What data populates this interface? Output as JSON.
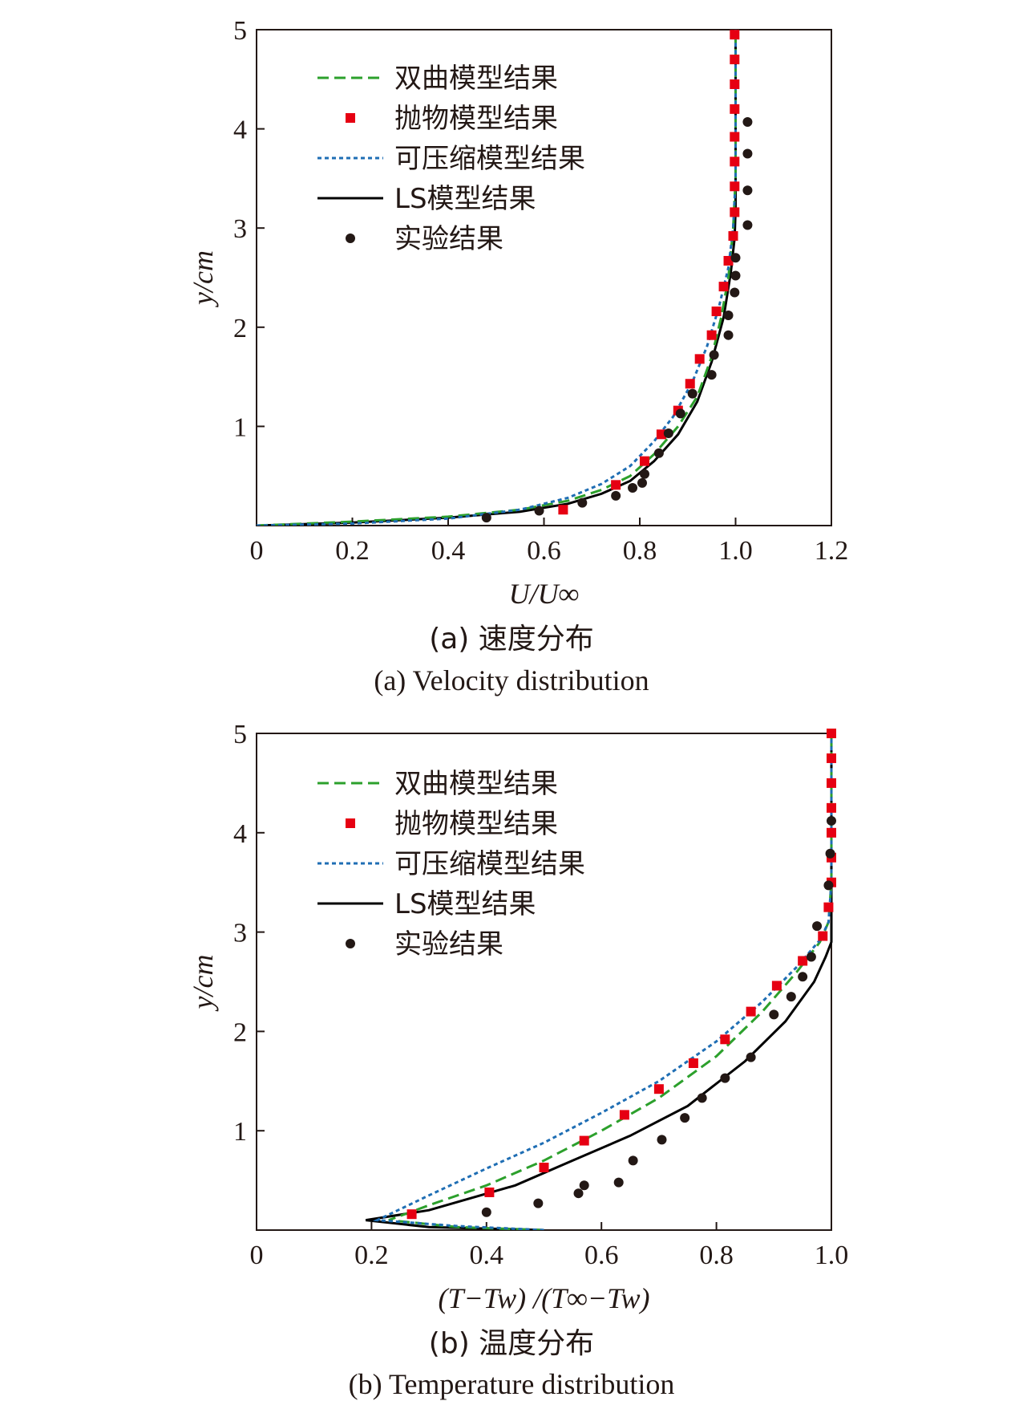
{
  "chart_data": [
    {
      "type": "line",
      "caption_zh": "(a) 速度分布",
      "caption_en": "(a) Velocity distribution",
      "xlabel": "U/U∞",
      "ylabel": "y/cm",
      "xlim": [
        0,
        1.2
      ],
      "ylim": [
        0,
        5
      ],
      "xticks": [
        "0",
        "0.2",
        "0.4",
        "0.6",
        "0.8",
        "1.0",
        "1.2"
      ],
      "yticks": [
        "5",
        "4",
        "3",
        "2",
        "1"
      ],
      "legend_position": "top-left",
      "legend": [
        "双曲模型结果",
        "抛物模型结果",
        "可压缩模型结果",
        "LS模型结果",
        "实验结果"
      ],
      "series": [
        {
          "name": "双曲模型结果",
          "style": "dashed-line",
          "color": "#2ca02c",
          "points": [
            [
              0,
              0
            ],
            [
              0.2,
              0.04
            ],
            [
              0.4,
              0.09
            ],
            [
              0.55,
              0.16
            ],
            [
              0.65,
              0.25
            ],
            [
              0.72,
              0.36
            ],
            [
              0.78,
              0.5
            ],
            [
              0.83,
              0.72
            ],
            [
              0.88,
              1.0
            ],
            [
              0.92,
              1.3
            ],
            [
              0.95,
              1.7
            ],
            [
              0.97,
              2.1
            ],
            [
              0.985,
              2.5
            ],
            [
              0.995,
              3.0
            ],
            [
              1.0,
              3.5
            ],
            [
              1.0,
              5.0
            ]
          ]
        },
        {
          "name": "抛物模型结果",
          "style": "square-markers",
          "color": "#e60012",
          "points": [
            [
              0.64,
              0.16
            ],
            [
              0.75,
              0.41
            ],
            [
              0.81,
              0.65
            ],
            [
              0.845,
              0.92
            ],
            [
              0.88,
              1.16
            ],
            [
              0.905,
              1.43
            ],
            [
              0.925,
              1.68
            ],
            [
              0.95,
              1.92
            ],
            [
              0.96,
              2.16
            ],
            [
              0.975,
              2.41
            ],
            [
              0.985,
              2.67
            ],
            [
              0.995,
              2.92
            ],
            [
              0.998,
              3.16
            ],
            [
              0.998,
              3.42
            ],
            [
              0.998,
              3.67
            ],
            [
              0.998,
              3.92
            ],
            [
              0.998,
              4.2
            ],
            [
              0.998,
              4.45
            ],
            [
              0.998,
              4.7
            ],
            [
              0.998,
              4.95
            ]
          ]
        },
        {
          "name": "可压缩模型结果",
          "style": "dotted-line",
          "color": "#1f6eb4",
          "points": [
            [
              0,
              0
            ],
            [
              0.2,
              0.02
            ],
            [
              0.4,
              0.07
            ],
            [
              0.55,
              0.16
            ],
            [
              0.65,
              0.28
            ],
            [
              0.72,
              0.42
            ],
            [
              0.78,
              0.6
            ],
            [
              0.83,
              0.85
            ],
            [
              0.87,
              1.1
            ],
            [
              0.91,
              1.45
            ],
            [
              0.94,
              1.8
            ],
            [
              0.965,
              2.2
            ],
            [
              0.985,
              2.6
            ],
            [
              0.995,
              3.0
            ],
            [
              1.0,
              3.5
            ],
            [
              1.0,
              5.0
            ]
          ]
        },
        {
          "name": "LS模型结果",
          "style": "solid-line",
          "color": "#000000",
          "points": [
            [
              0,
              0
            ],
            [
              0.2,
              0.03
            ],
            [
              0.4,
              0.08
            ],
            [
              0.55,
              0.14
            ],
            [
              0.65,
              0.22
            ],
            [
              0.72,
              0.32
            ],
            [
              0.78,
              0.45
            ],
            [
              0.83,
              0.65
            ],
            [
              0.88,
              0.92
            ],
            [
              0.92,
              1.25
            ],
            [
              0.95,
              1.65
            ],
            [
              0.975,
              2.1
            ],
            [
              0.99,
              2.55
            ],
            [
              0.998,
              2.9
            ],
            [
              1.0,
              3.2
            ],
            [
              1.0,
              5.0
            ]
          ]
        },
        {
          "name": "实验结果",
          "style": "circle-markers",
          "color": "#231815",
          "points": [
            [
              0.48,
              0.08
            ],
            [
              0.59,
              0.15
            ],
            [
              0.68,
              0.23
            ],
            [
              0.75,
              0.3
            ],
            [
              0.785,
              0.38
            ],
            [
              0.805,
              0.43
            ],
            [
              0.81,
              0.52
            ],
            [
              0.84,
              0.73
            ],
            [
              0.86,
              0.93
            ],
            [
              0.885,
              1.13
            ],
            [
              0.91,
              1.33
            ],
            [
              0.95,
              1.52
            ],
            [
              0.955,
              1.72
            ],
            [
              0.985,
              1.92
            ],
            [
              0.985,
              2.12
            ],
            [
              0.998,
              2.35
            ],
            [
              1.0,
              2.52
            ],
            [
              1.0,
              2.7
            ],
            [
              1.025,
              3.03
            ],
            [
              1.025,
              3.38
            ],
            [
              1.025,
              3.75
            ],
            [
              1.025,
              4.07
            ]
          ]
        }
      ]
    },
    {
      "type": "line",
      "caption_zh": "(b) 温度分布",
      "caption_en": "(b) Temperature distribution",
      "xlabel": "(T−Tw) /(T∞−Tw)",
      "ylabel": "y/cm",
      "xlim": [
        0,
        1.0
      ],
      "ylim": [
        0,
        5
      ],
      "xticks": [
        "0",
        "0.2",
        "0.4",
        "0.6",
        "0.8",
        "1.0"
      ],
      "yticks": [
        "5",
        "4",
        "3",
        "2",
        "1"
      ],
      "legend_position": "top-left",
      "legend": [
        "双曲模型结果",
        "抛物模型结果",
        "可压缩模型结果",
        "LS模型结果",
        "实验结果"
      ],
      "series": [
        {
          "name": "双曲模型结果",
          "style": "dashed-line",
          "color": "#2ca02c",
          "points": [
            [
              0.5,
              0
            ],
            [
              0.35,
              0.03
            ],
            [
              0.23,
              0.1
            ],
            [
              0.3,
              0.25
            ],
            [
              0.4,
              0.45
            ],
            [
              0.5,
              0.7
            ],
            [
              0.6,
              1.0
            ],
            [
              0.7,
              1.33
            ],
            [
              0.8,
              1.75
            ],
            [
              0.88,
              2.2
            ],
            [
              0.94,
              2.6
            ],
            [
              0.98,
              2.9
            ],
            [
              0.995,
              3.1
            ],
            [
              1.0,
              3.5
            ],
            [
              1.0,
              5.0
            ]
          ]
        },
        {
          "name": "抛物模型结果",
          "style": "square-markers",
          "color": "#e60012",
          "points": [
            [
              0.27,
              0.16
            ],
            [
              0.405,
              0.38
            ],
            [
              0.5,
              0.63
            ],
            [
              0.57,
              0.9
            ],
            [
              0.64,
              1.16
            ],
            [
              0.7,
              1.42
            ],
            [
              0.76,
              1.68
            ],
            [
              0.815,
              1.92
            ],
            [
              0.86,
              2.2
            ],
            [
              0.905,
              2.46
            ],
            [
              0.95,
              2.71
            ],
            [
              0.985,
              2.96
            ],
            [
              0.995,
              3.25
            ],
            [
              1.0,
              3.5
            ],
            [
              1.0,
              3.75
            ],
            [
              1.0,
              4.0
            ],
            [
              1.0,
              4.25
            ],
            [
              1.0,
              4.5
            ],
            [
              1.0,
              4.75
            ],
            [
              1.0,
              5.0
            ]
          ]
        },
        {
          "name": "可压缩模型结果",
          "style": "dotted-line",
          "color": "#1f6eb4",
          "points": [
            [
              0.5,
              0
            ],
            [
              0.35,
              0.04
            ],
            [
              0.21,
              0.1
            ],
            [
              0.3,
              0.35
            ],
            [
              0.4,
              0.62
            ],
            [
              0.5,
              0.88
            ],
            [
              0.6,
              1.18
            ],
            [
              0.7,
              1.5
            ],
            [
              0.8,
              1.9
            ],
            [
              0.88,
              2.3
            ],
            [
              0.94,
              2.65
            ],
            [
              0.98,
              2.92
            ],
            [
              0.995,
              3.1
            ],
            [
              1.0,
              3.5
            ],
            [
              1.0,
              5.0
            ]
          ]
        },
        {
          "name": "LS模型结果",
          "style": "solid-line",
          "color": "#000000",
          "points": [
            [
              0.5,
              0
            ],
            [
              0.3,
              0.03
            ],
            [
              0.19,
              0.1
            ],
            [
              0.3,
              0.2
            ],
            [
              0.45,
              0.45
            ],
            [
              0.55,
              0.7
            ],
            [
              0.65,
              0.95
            ],
            [
              0.75,
              1.25
            ],
            [
              0.85,
              1.7
            ],
            [
              0.92,
              2.1
            ],
            [
              0.97,
              2.5
            ],
            [
              0.99,
              2.75
            ],
            [
              1.0,
              2.9
            ],
            [
              1.0,
              5.0
            ]
          ]
        },
        {
          "name": "实验结果",
          "style": "circle-markers",
          "color": "#231815",
          "points": [
            [
              0.4,
              0.18
            ],
            [
              0.49,
              0.27
            ],
            [
              0.56,
              0.37
            ],
            [
              0.57,
              0.45
            ],
            [
              0.63,
              0.48
            ],
            [
              0.655,
              0.7
            ],
            [
              0.705,
              0.91
            ],
            [
              0.745,
              1.13
            ],
            [
              0.775,
              1.33
            ],
            [
              0.815,
              1.53
            ],
            [
              0.86,
              1.74
            ],
            [
              0.9,
              2.17
            ],
            [
              0.93,
              2.35
            ],
            [
              0.95,
              2.55
            ],
            [
              0.965,
              2.75
            ],
            [
              0.975,
              3.06
            ],
            [
              0.995,
              3.47
            ],
            [
              0.998,
              3.79
            ],
            [
              1.0,
              4.12
            ]
          ]
        }
      ]
    }
  ]
}
